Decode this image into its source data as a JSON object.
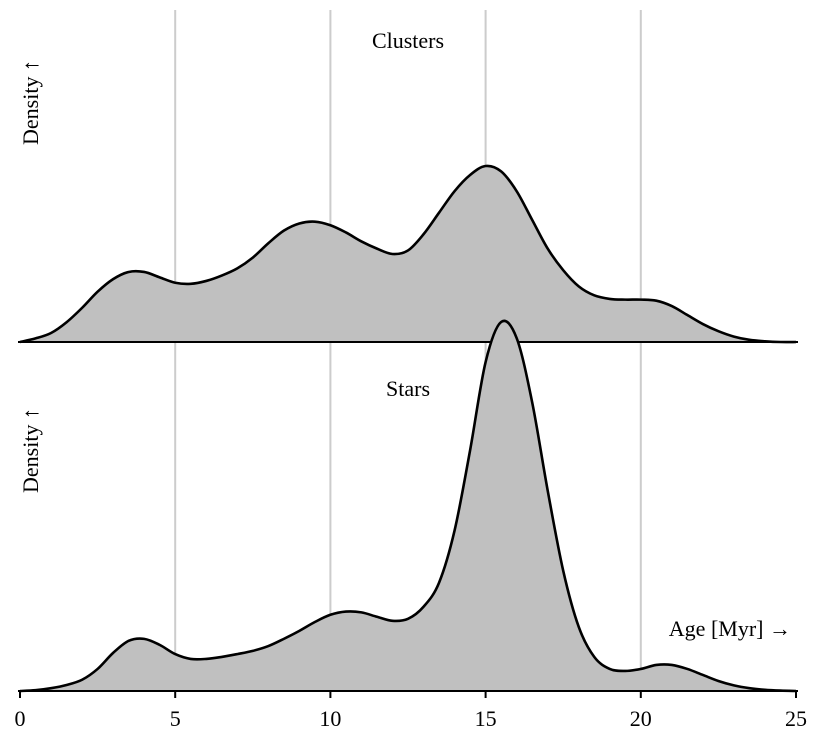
{
  "chart_data": [
    {
      "type": "area",
      "title": "Clusters",
      "ylabel": "Density ↑",
      "xlim": [
        0,
        25
      ],
      "grid": "vertical",
      "x": [
        0,
        0.5,
        1,
        1.5,
        2,
        2.5,
        3,
        3.5,
        4,
        4.5,
        5,
        5.5,
        6,
        6.5,
        7,
        7.5,
        8,
        8.5,
        9,
        9.5,
        10,
        10.5,
        11,
        11.5,
        12,
        12.5,
        13,
        13.5,
        14,
        14.5,
        15,
        15.5,
        16,
        16.5,
        17,
        17.5,
        18,
        18.5,
        19,
        19.5,
        20,
        20.5,
        21,
        21.5,
        22,
        22.5,
        23,
        23.5,
        24,
        24.5,
        25
      ],
      "y": [
        0.0,
        0.01,
        0.025,
        0.055,
        0.095,
        0.14,
        0.175,
        0.195,
        0.195,
        0.18,
        0.165,
        0.162,
        0.17,
        0.185,
        0.205,
        0.235,
        0.275,
        0.31,
        0.33,
        0.335,
        0.325,
        0.305,
        0.28,
        0.26,
        0.245,
        0.255,
        0.3,
        0.36,
        0.42,
        0.465,
        0.49,
        0.475,
        0.42,
        0.34,
        0.26,
        0.2,
        0.155,
        0.13,
        0.12,
        0.118,
        0.118,
        0.115,
        0.1,
        0.075,
        0.05,
        0.03,
        0.015,
        0.006,
        0.002,
        0.0,
        0.0
      ]
    },
    {
      "type": "area",
      "title": "Stars",
      "ylabel": "Density ↑",
      "xlabel": "Age [Myr] →",
      "xlim": [
        0,
        25
      ],
      "grid": "vertical",
      "x": [
        0,
        0.5,
        1,
        1.5,
        2,
        2.5,
        3,
        3.5,
        4,
        4.5,
        5,
        5.5,
        6,
        6.5,
        7,
        7.5,
        8,
        8.5,
        9,
        9.5,
        10,
        10.5,
        11,
        11.5,
        12,
        12.5,
        13,
        13.5,
        14,
        14.5,
        15,
        15.5,
        16,
        16.5,
        17,
        17.5,
        18,
        18.5,
        19,
        19.5,
        20,
        20.5,
        21,
        21.5,
        22,
        22.5,
        23,
        23.5,
        24,
        24.5,
        25
      ],
      "y": [
        0.0,
        0.002,
        0.007,
        0.015,
        0.028,
        0.055,
        0.095,
        0.125,
        0.13,
        0.115,
        0.092,
        0.08,
        0.08,
        0.085,
        0.092,
        0.1,
        0.112,
        0.13,
        0.15,
        0.172,
        0.19,
        0.198,
        0.196,
        0.185,
        0.175,
        0.18,
        0.21,
        0.27,
        0.4,
        0.6,
        0.82,
        0.92,
        0.88,
        0.72,
        0.5,
        0.3,
        0.16,
        0.085,
        0.055,
        0.05,
        0.055,
        0.065,
        0.065,
        0.055,
        0.04,
        0.025,
        0.014,
        0.007,
        0.003,
        0.001,
        0.0
      ]
    }
  ],
  "x_axis": {
    "ticks": [
      0,
      5,
      10,
      15,
      20,
      25
    ],
    "tick_labels": [
      "0",
      "5",
      "10",
      "15",
      "20",
      "25"
    ]
  }
}
